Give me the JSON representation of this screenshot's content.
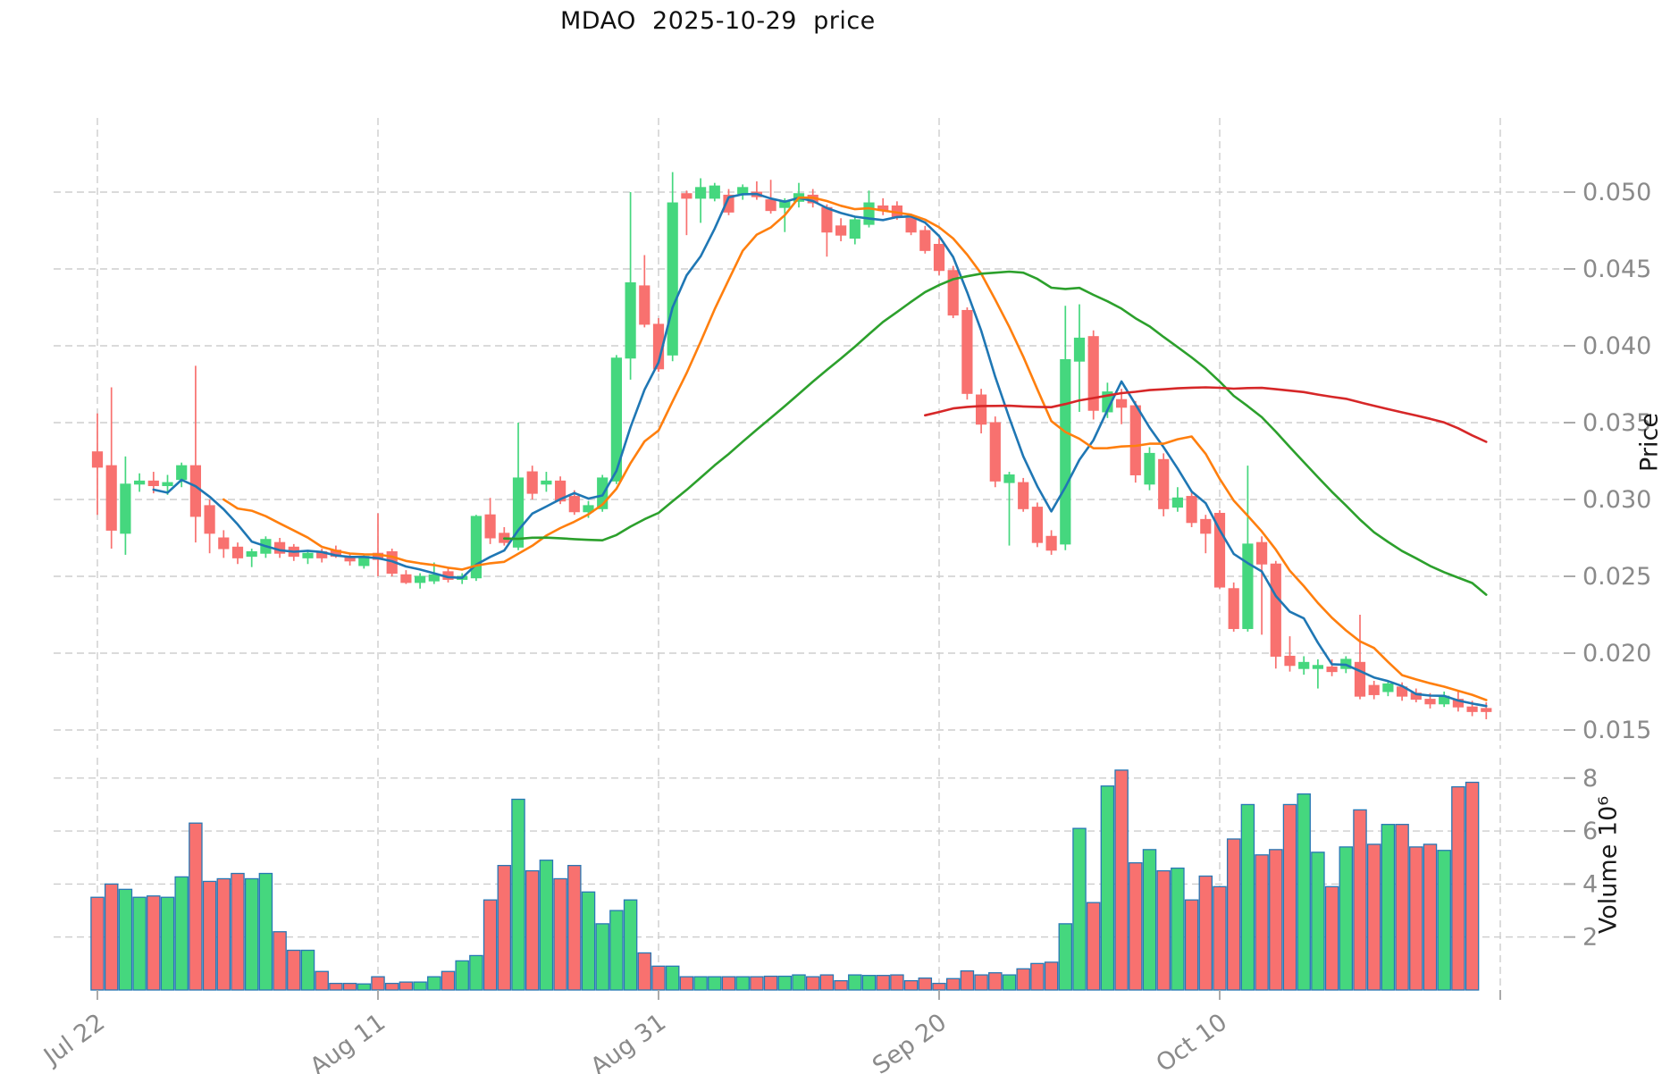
{
  "chart_data": {
    "type": "candlestick",
    "title": "MDAO  2025-10-29  price",
    "price_axis_label": "Price",
    "volume_axis_label": "Volume 10⁶",
    "legend_position": "none",
    "grid": true,
    "price_ticks": [
      0.015,
      0.02,
      0.025,
      0.03,
      0.035,
      0.04,
      0.045,
      0.05
    ],
    "volume_ticks": [
      2,
      4,
      6,
      8
    ],
    "x_ticks": [
      {
        "day": 0,
        "label": "Jul 22"
      },
      {
        "day": 20,
        "label": "Aug 11"
      },
      {
        "day": 40,
        "label": "Aug 31"
      },
      {
        "day": 60,
        "label": "Sep 20"
      },
      {
        "day": 80,
        "label": "Oct 10"
      },
      {
        "day": 100,
        "label": ""
      }
    ],
    "moving_averages": [
      {
        "name": "MA5",
        "window": 5,
        "color": "#1f77b4"
      },
      {
        "name": "MA10",
        "window": 10,
        "color": "#ff7f0e"
      },
      {
        "name": "MA30",
        "window": 30,
        "color": "#2ca02c"
      },
      {
        "name": "MA60",
        "window": 60,
        "color": "#d62728"
      }
    ],
    "colors": {
      "up": "#45d77e",
      "down": "#f8716f",
      "volume_edge": "#2878b5",
      "grid": "#cdcdcd",
      "tick_text": "#8a8a8a",
      "tick_mark": "#aaaaaa",
      "title_text": "#111111"
    },
    "dates": [
      "2025-07-22",
      "2025-07-23",
      "2025-07-24",
      "2025-07-25",
      "2025-07-26",
      "2025-07-27",
      "2025-07-28",
      "2025-07-29",
      "2025-07-30",
      "2025-07-31",
      "2025-08-01",
      "2025-08-02",
      "2025-08-03",
      "2025-08-04",
      "2025-08-05",
      "2025-08-06",
      "2025-08-07",
      "2025-08-08",
      "2025-08-09",
      "2025-08-10",
      "2025-08-11",
      "2025-08-12",
      "2025-08-13",
      "2025-08-14",
      "2025-08-15",
      "2025-08-16",
      "2025-08-17",
      "2025-08-18",
      "2025-08-19",
      "2025-08-20",
      "2025-08-21",
      "2025-08-22",
      "2025-08-23",
      "2025-08-24",
      "2025-08-25",
      "2025-08-26",
      "2025-08-27",
      "2025-08-28",
      "2025-08-29",
      "2025-08-30",
      "2025-08-31",
      "2025-09-01",
      "2025-09-02",
      "2025-09-03",
      "2025-09-04",
      "2025-09-05",
      "2025-09-06",
      "2025-09-07",
      "2025-09-08",
      "2025-09-09",
      "2025-09-10",
      "2025-09-11",
      "2025-09-12",
      "2025-09-13",
      "2025-09-14",
      "2025-09-15",
      "2025-09-16",
      "2025-09-17",
      "2025-09-18",
      "2025-09-19",
      "2025-09-20",
      "2025-09-21",
      "2025-09-22",
      "2025-09-23",
      "2025-09-24",
      "2025-09-25",
      "2025-09-26",
      "2025-09-27",
      "2025-09-28",
      "2025-09-29",
      "2025-09-30",
      "2025-10-01",
      "2025-10-02",
      "2025-10-03",
      "2025-10-04",
      "2025-10-05",
      "2025-10-06",
      "2025-10-07",
      "2025-10-08",
      "2025-10-09",
      "2025-10-10",
      "2025-10-11",
      "2025-10-12",
      "2025-10-13",
      "2025-10-14",
      "2025-10-15",
      "2025-10-16",
      "2025-10-17",
      "2025-10-18",
      "2025-10-19",
      "2025-10-20",
      "2025-10-21",
      "2025-10-22",
      "2025-10-23",
      "2025-10-24",
      "2025-10-25",
      "2025-10-26",
      "2025-10-27",
      "2025-10-28",
      "2025-10-29"
    ],
    "ohlc": [
      [
        0.0331,
        0.0356,
        0.029,
        0.0321
      ],
      [
        0.0322,
        0.0373,
        0.0268,
        0.028
      ],
      [
        0.0278,
        0.0328,
        0.0264,
        0.031
      ],
      [
        0.031,
        0.0317,
        0.0305,
        0.0312
      ],
      [
        0.0312,
        0.0318,
        0.0304,
        0.0309
      ],
      [
        0.0309,
        0.0316,
        0.0303,
        0.0311
      ],
      [
        0.0313,
        0.0324,
        0.0308,
        0.0322
      ],
      [
        0.0322,
        0.0387,
        0.0272,
        0.0289
      ],
      [
        0.0296,
        0.03,
        0.0265,
        0.0278
      ],
      [
        0.0275,
        0.028,
        0.0262,
        0.0268
      ],
      [
        0.0269,
        0.0272,
        0.0258,
        0.0262
      ],
      [
        0.0263,
        0.0268,
        0.0256,
        0.0266
      ],
      [
        0.0265,
        0.0276,
        0.0262,
        0.0274
      ],
      [
        0.0272,
        0.0275,
        0.0262,
        0.0265
      ],
      [
        0.0269,
        0.0271,
        0.026,
        0.0263
      ],
      [
        0.0262,
        0.0267,
        0.0258,
        0.0265
      ],
      [
        0.0266,
        0.0268,
        0.0259,
        0.0262
      ],
      [
        0.0267,
        0.027,
        0.0262,
        0.0263
      ],
      [
        0.0263,
        0.0265,
        0.0257,
        0.026
      ],
      [
        0.0257,
        0.0264,
        0.0255,
        0.0263
      ],
      [
        0.0265,
        0.0291,
        0.025,
        0.0261
      ],
      [
        0.0266,
        0.0268,
        0.025,
        0.0252
      ],
      [
        0.0251,
        0.0254,
        0.0245,
        0.0246
      ],
      [
        0.0246,
        0.0252,
        0.0242,
        0.025
      ],
      [
        0.0247,
        0.0259,
        0.0245,
        0.0251
      ],
      [
        0.0253,
        0.0255,
        0.0246,
        0.0248
      ],
      [
        0.0248,
        0.0252,
        0.0245,
        0.025
      ],
      [
        0.0249,
        0.029,
        0.0247,
        0.0289
      ],
      [
        0.029,
        0.0301,
        0.0271,
        0.0275
      ],
      [
        0.0278,
        0.0282,
        0.027,
        0.0272
      ],
      [
        0.0269,
        0.035,
        0.0267,
        0.0314
      ],
      [
        0.0318,
        0.0322,
        0.03,
        0.0304
      ],
      [
        0.031,
        0.0318,
        0.0305,
        0.0312
      ],
      [
        0.0312,
        0.0315,
        0.0297,
        0.0299
      ],
      [
        0.0302,
        0.0306,
        0.029,
        0.0292
      ],
      [
        0.0292,
        0.0299,
        0.0288,
        0.0296
      ],
      [
        0.0294,
        0.0316,
        0.0292,
        0.0314
      ],
      [
        0.0312,
        0.0394,
        0.031,
        0.0392
      ],
      [
        0.0392,
        0.05,
        0.0378,
        0.0441
      ],
      [
        0.0439,
        0.0459,
        0.0412,
        0.0414
      ],
      [
        0.0414,
        0.0418,
        0.0383,
        0.0385
      ],
      [
        0.0394,
        0.0513,
        0.039,
        0.0493
      ],
      [
        0.0499,
        0.0501,
        0.0472,
        0.0496
      ],
      [
        0.0496,
        0.0509,
        0.048,
        0.0503
      ],
      [
        0.0496,
        0.0506,
        0.0494,
        0.0504
      ],
      [
        0.0498,
        0.0502,
        0.0485,
        0.0487
      ],
      [
        0.0499,
        0.0505,
        0.0495,
        0.0503
      ],
      [
        0.05,
        0.0507,
        0.0495,
        0.0497
      ],
      [
        0.0495,
        0.0508,
        0.0486,
        0.0488
      ],
      [
        0.049,
        0.0496,
        0.0474,
        0.0494
      ],
      [
        0.0494,
        0.0506,
        0.049,
        0.0499
      ],
      [
        0.0498,
        0.0502,
        0.049,
        0.0493
      ],
      [
        0.049,
        0.0492,
        0.0458,
        0.0474
      ],
      [
        0.0478,
        0.0483,
        0.0468,
        0.0472
      ],
      [
        0.047,
        0.0484,
        0.0466,
        0.0482
      ],
      [
        0.0479,
        0.0501,
        0.0477,
        0.0493
      ],
      [
        0.0491,
        0.0496,
        0.0485,
        0.0488
      ],
      [
        0.0491,
        0.0494,
        0.0482,
        0.0484
      ],
      [
        0.0483,
        0.0486,
        0.0472,
        0.0474
      ],
      [
        0.0475,
        0.0478,
        0.046,
        0.0462
      ],
      [
        0.0466,
        0.047,
        0.0446,
        0.0449
      ],
      [
        0.0449,
        0.0452,
        0.0418,
        0.042
      ],
      [
        0.0423,
        0.0425,
        0.0365,
        0.0369
      ],
      [
        0.0368,
        0.0372,
        0.0343,
        0.0349
      ],
      [
        0.035,
        0.0354,
        0.0308,
        0.0312
      ],
      [
        0.0311,
        0.0318,
        0.027,
        0.0316
      ],
      [
        0.0311,
        0.0314,
        0.0292,
        0.0294
      ],
      [
        0.0295,
        0.0298,
        0.0269,
        0.0272
      ],
      [
        0.0276,
        0.028,
        0.0264,
        0.0267
      ],
      [
        0.0271,
        0.0426,
        0.0267,
        0.0391
      ],
      [
        0.039,
        0.0427,
        0.0357,
        0.0405
      ],
      [
        0.0406,
        0.041,
        0.0352,
        0.0358
      ],
      [
        0.0357,
        0.0376,
        0.0353,
        0.037
      ],
      [
        0.0365,
        0.0372,
        0.0349,
        0.036
      ],
      [
        0.0361,
        0.0364,
        0.0311,
        0.0316
      ],
      [
        0.031,
        0.0334,
        0.0306,
        0.033
      ],
      [
        0.0326,
        0.033,
        0.0289,
        0.0294
      ],
      [
        0.0295,
        0.0308,
        0.0292,
        0.0301
      ],
      [
        0.0302,
        0.0305,
        0.0282,
        0.0285
      ],
      [
        0.0287,
        0.029,
        0.0265,
        0.0278
      ],
      [
        0.0291,
        0.0293,
        0.0242,
        0.0243
      ],
      [
        0.0242,
        0.0246,
        0.0214,
        0.0216
      ],
      [
        0.0216,
        0.0322,
        0.0214,
        0.0271
      ],
      [
        0.0272,
        0.0276,
        0.0212,
        0.0258
      ],
      [
        0.0258,
        0.026,
        0.019,
        0.0198
      ],
      [
        0.0198,
        0.0211,
        0.0188,
        0.0192
      ],
      [
        0.019,
        0.0198,
        0.0186,
        0.0194
      ],
      [
        0.019,
        0.0196,
        0.0177,
        0.0192
      ],
      [
        0.0191,
        0.0196,
        0.0185,
        0.0188
      ],
      [
        0.019,
        0.0198,
        0.0187,
        0.0196
      ],
      [
        0.0194,
        0.0225,
        0.017,
        0.0172
      ],
      [
        0.0179,
        0.0182,
        0.017,
        0.0173
      ],
      [
        0.0175,
        0.0182,
        0.0172,
        0.018
      ],
      [
        0.0178,
        0.0181,
        0.0169,
        0.0172
      ],
      [
        0.0174,
        0.0177,
        0.0168,
        0.017
      ],
      [
        0.017,
        0.0174,
        0.0164,
        0.0167
      ],
      [
        0.0167,
        0.0175,
        0.0165,
        0.0172
      ],
      [
        0.017,
        0.0176,
        0.0162,
        0.0165
      ],
      [
        0.0165,
        0.0169,
        0.0159,
        0.0162
      ],
      [
        0.0164,
        0.0168,
        0.0157,
        0.0162
      ]
    ],
    "volume_millions": [
      3.5,
      4.0,
      3.8,
      3.5,
      3.55,
      3.5,
      4.27,
      6.3,
      4.1,
      4.2,
      4.4,
      4.2,
      4.4,
      2.2,
      1.5,
      1.5,
      0.7,
      0.25,
      0.25,
      0.23,
      0.5,
      0.25,
      0.3,
      0.3,
      0.5,
      0.7,
      1.1,
      1.3,
      3.4,
      4.7,
      7.2,
      4.5,
      4.9,
      4.2,
      4.7,
      3.7,
      2.5,
      3.0,
      3.4,
      1.4,
      0.9,
      0.9,
      0.5,
      0.5,
      0.5,
      0.5,
      0.5,
      0.5,
      0.52,
      0.52,
      0.57,
      0.5,
      0.57,
      0.35,
      0.57,
      0.55,
      0.55,
      0.57,
      0.35,
      0.45,
      0.25,
      0.43,
      0.72,
      0.57,
      0.65,
      0.57,
      0.8,
      1.0,
      1.05,
      2.5,
      6.1,
      3.3,
      7.7,
      8.3,
      4.8,
      5.3,
      4.5,
      4.6,
      3.4,
      4.3,
      3.9,
      5.7,
      7.0,
      5.1,
      5.3,
      7.0,
      7.4,
      5.2,
      3.9,
      5.4,
      6.8,
      5.5,
      6.25,
      6.25,
      5.4,
      5.5,
      5.27,
      7.67,
      7.84,
      0
    ]
  }
}
